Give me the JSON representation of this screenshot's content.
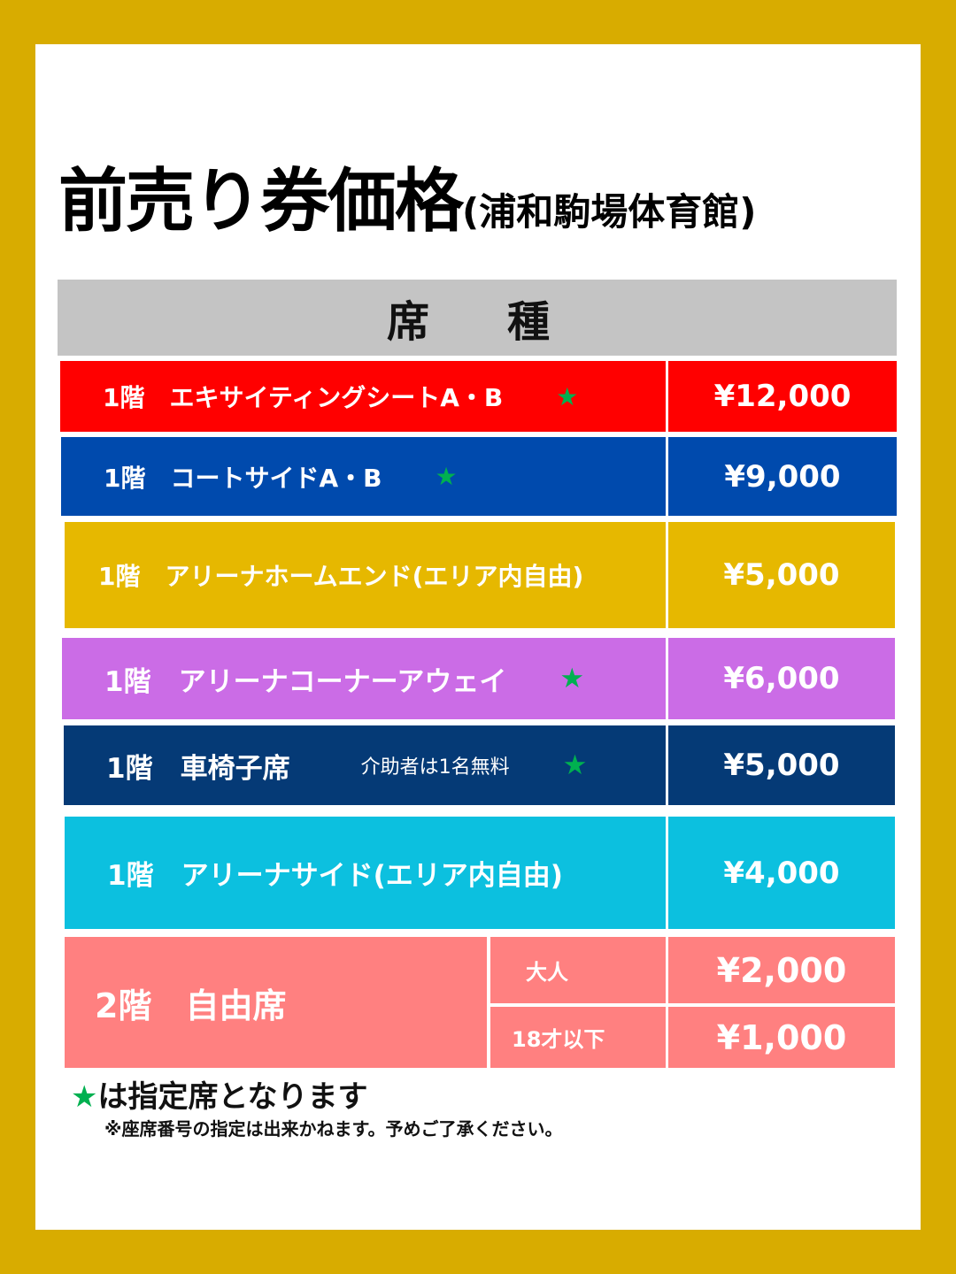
{
  "title": {
    "main": "前売り券価格",
    "venue": "(浦和駒場体育館)"
  },
  "header": "席　種",
  "colors": {
    "background": "#d8ac00",
    "star": "#00b050"
  },
  "rows": [
    {
      "name": "1階　エキサイティングシートA・B",
      "star": "★",
      "price": "¥12,000",
      "color": "#ff0000"
    },
    {
      "name": "1階　コートサイドA・B",
      "star": "★",
      "price": "¥9,000",
      "color": "#004aad"
    },
    {
      "name": "1階　アリーナホームエンド(エリア内自由)",
      "price": "¥5,000",
      "color": "#e6b800"
    },
    {
      "name": "1階　アリーナコーナーアウェイ",
      "star": "★",
      "price": "¥6,000",
      "color": "#cb6ce6"
    },
    {
      "name": "1階　車椅子席",
      "note": "介助者は1名無料",
      "star": "★",
      "price": "¥5,000",
      "color": "#053a76"
    },
    {
      "name": "1階　アリーナサイド(エリア内自由)",
      "price": "¥4,000",
      "color": "#0cc0df"
    }
  ],
  "second_floor": {
    "name": "2階　自由席",
    "color": "#ff8080",
    "tiers": [
      {
        "label": "大人",
        "price": "¥2,000"
      },
      {
        "label": "18才以下",
        "price": "¥1,000"
      }
    ]
  },
  "footer": {
    "star": "★",
    "legend": "は指定席となります",
    "note": "※座席番号の指定は出来かねます。予めご了承ください。"
  }
}
